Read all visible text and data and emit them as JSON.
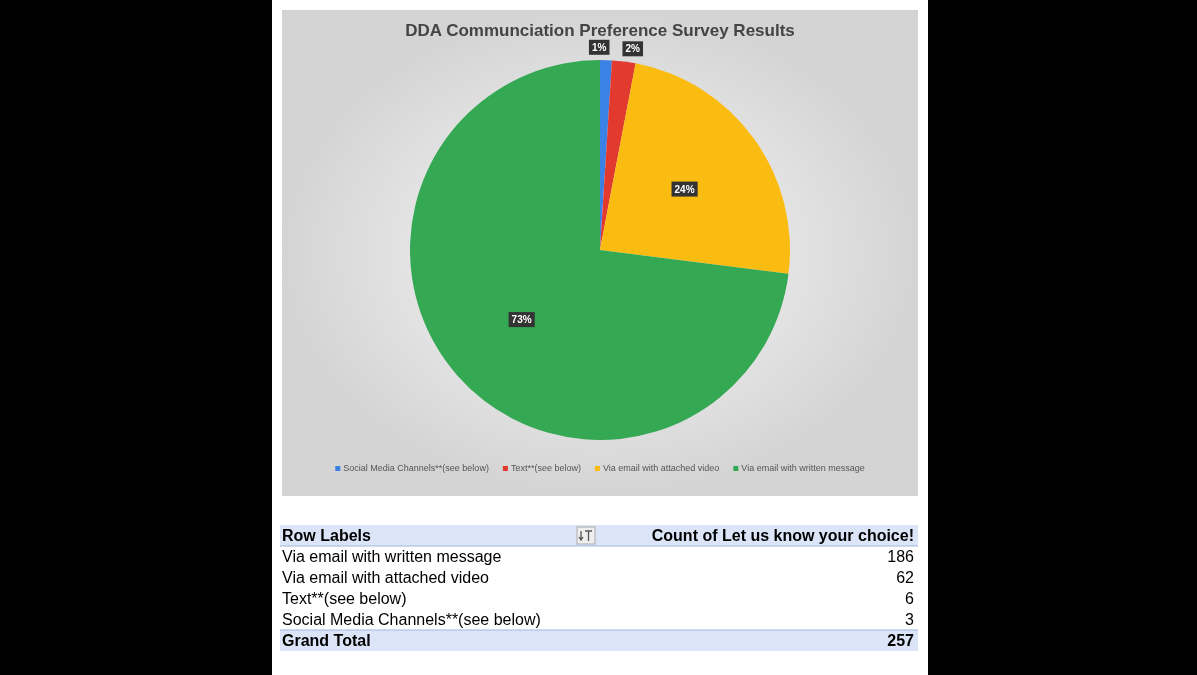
{
  "chart_data": {
    "type": "pie",
    "title": "DDA Communciation Preference Survey Results",
    "categories": [
      "Social Media Channels**(see below)",
      "Text**(see below)",
      "Via email with attached video",
      "Via email with written message"
    ],
    "values": [
      1,
      2,
      24,
      73
    ],
    "colors": [
      "#3b82e6",
      "#e23a2e",
      "#fbbc12",
      "#34a853"
    ],
    "value_labels": [
      "1%",
      "2%",
      "24%",
      "73%"
    ],
    "legend": "bottom",
    "annotations": [
      "Row Labels",
      "Count of Let us know your choice!",
      "Grand Total",
      "257",
      "3",
      "6",
      "62",
      "186"
    ]
  }
}
